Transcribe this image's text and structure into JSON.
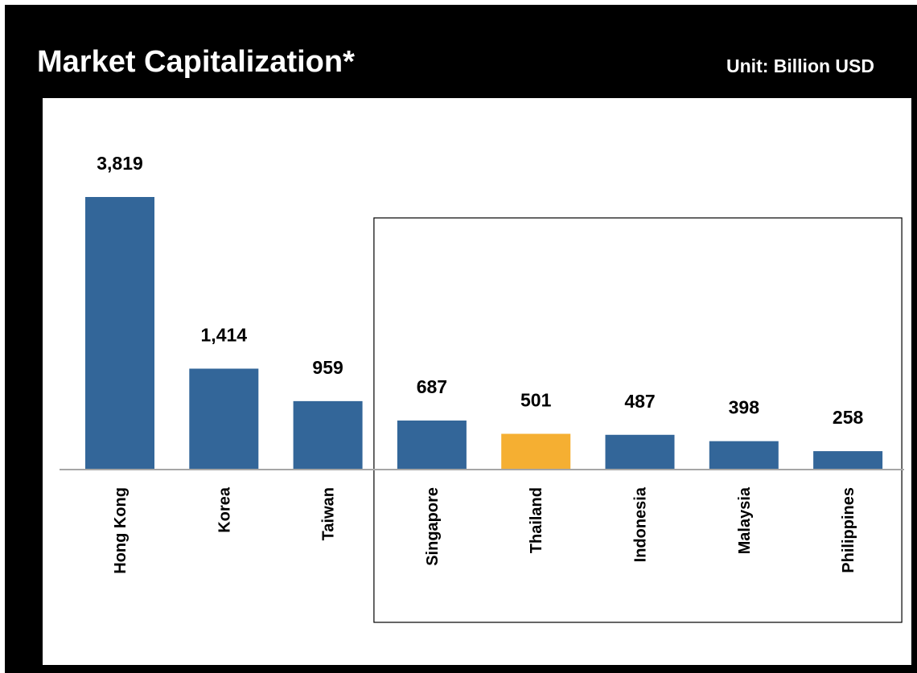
{
  "header": {
    "title": "Market Capitalization*",
    "unit": "Unit: Billion USD"
  },
  "chart_data": {
    "type": "bar",
    "title": "Market Capitalization*",
    "unit_label": "Unit: Billion USD",
    "categories": [
      "Hong Kong",
      "Korea",
      "Taiwan",
      "Singapore",
      "Thailand",
      "Indonesia",
      "Malaysia",
      "Philippines"
    ],
    "values": [
      3819,
      1414,
      959,
      687,
      501,
      487,
      398,
      258
    ],
    "value_labels": [
      "3,819",
      "1,414",
      "959",
      "687",
      "501",
      "487",
      "398",
      "258"
    ],
    "highlight": "Thailand",
    "highlight_group": [
      "Singapore",
      "Thailand",
      "Indonesia",
      "Malaysia",
      "Philippines"
    ],
    "ylim": [
      0,
      3819
    ],
    "grid": false,
    "legend": "none",
    "colors": {
      "bar": "#336699",
      "highlight": "#F5AF32",
      "axis": "#A6A6A6"
    }
  }
}
